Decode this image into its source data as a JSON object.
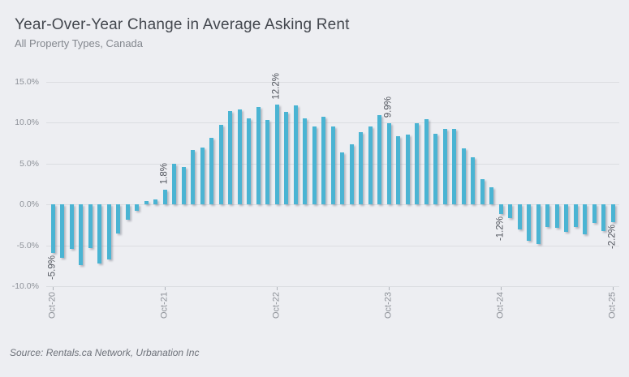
{
  "header": {
    "title": "Year-Over-Year Change in Average Asking Rent",
    "subtitle": "All Property Types, Canada"
  },
  "footer": {
    "source": "Source: Rentals.ca Network, Urbanation Inc"
  },
  "colors": {
    "background": "#edeef2",
    "bar": "#4ab4d3",
    "gridline": "#dbdde1",
    "title_text": "#43474e",
    "axis_text": "#8d9198",
    "annotation_text": "#52565e"
  },
  "chart_data": {
    "type": "bar",
    "title": "Year-Over-Year Change in Average Asking Rent",
    "subtitle": "All Property Types, Canada",
    "unit": "%",
    "ylim": [
      -10,
      15
    ],
    "grid": "horizontal-only",
    "legend": "none",
    "ytick_labels": [
      "15.0%",
      "10.0%",
      "5.0%",
      "0.0%",
      "-5.0%",
      "-10.0%"
    ],
    "ytick_values": [
      15,
      10,
      5,
      0,
      -5,
      -10
    ],
    "xtick_labels": [
      "Oct-20",
      "Oct-21",
      "Oct-22",
      "Oct-23",
      "Oct-24",
      "Oct-25"
    ],
    "xtick_rotation": 90,
    "categories": [
      "Oct-20",
      "Nov-20",
      "Dec-20",
      "Jan-21",
      "Feb-21",
      "Mar-21",
      "Apr-21",
      "May-21",
      "Jun-21",
      "Jul-21",
      "Aug-21",
      "Sep-21",
      "Oct-21",
      "Nov-21",
      "Dec-21",
      "Jan-22",
      "Feb-22",
      "Mar-22",
      "Apr-22",
      "May-22",
      "Jun-22",
      "Jul-22",
      "Aug-22",
      "Sep-22",
      "Oct-22",
      "Nov-22",
      "Dec-22",
      "Jan-23",
      "Feb-23",
      "Mar-23",
      "Apr-23",
      "May-23",
      "Jun-23",
      "Jul-23",
      "Aug-23",
      "Sep-23",
      "Oct-23",
      "Nov-23",
      "Dec-23",
      "Jan-24",
      "Feb-24",
      "Mar-24",
      "Apr-24",
      "May-24",
      "Jun-24",
      "Jul-24",
      "Aug-24",
      "Sep-24",
      "Oct-24",
      "Nov-24",
      "Dec-24",
      "Jan-25",
      "Feb-25",
      "Mar-25",
      "Apr-25",
      "May-25",
      "Jun-25",
      "Jul-25",
      "Aug-25",
      "Sep-25",
      "Oct-25"
    ],
    "values": [
      -5.9,
      -6.5,
      -5.4,
      -7.4,
      -5.3,
      -7.2,
      -6.7,
      -3.6,
      -1.9,
      -0.8,
      0.4,
      0.6,
      1.8,
      5.0,
      4.6,
      6.7,
      7.0,
      8.2,
      9.7,
      11.4,
      11.6,
      10.5,
      11.9,
      10.3,
      12.2,
      11.3,
      12.1,
      10.5,
      9.5,
      10.7,
      9.5,
      6.4,
      7.4,
      8.8,
      9.5,
      10.9,
      9.9,
      8.4,
      8.6,
      9.9,
      10.4,
      8.7,
      9.2,
      9.2,
      6.9,
      5.8,
      3.1,
      2.1,
      -1.2,
      -1.7,
      -3.1,
      -4.4,
      -4.8,
      -2.8,
      -2.9,
      -3.4,
      -2.8,
      -3.7,
      -2.3,
      -3.3,
      -2.2
    ],
    "annotations": [
      {
        "index": 0,
        "category": "Oct-20",
        "label": "-5.9%"
      },
      {
        "index": 12,
        "category": "Oct-21",
        "label": "1.8%"
      },
      {
        "index": 24,
        "category": "Oct-22",
        "label": "12.2%"
      },
      {
        "index": 36,
        "category": "Oct-23",
        "label": "9.9%"
      },
      {
        "index": 48,
        "category": "Oct-24",
        "label": "-1.2%"
      },
      {
        "index": 60,
        "category": "Oct-25",
        "label": "-2.2%"
      }
    ],
    "source": "Source: Rentals.ca Network, Urbanation Inc"
  }
}
